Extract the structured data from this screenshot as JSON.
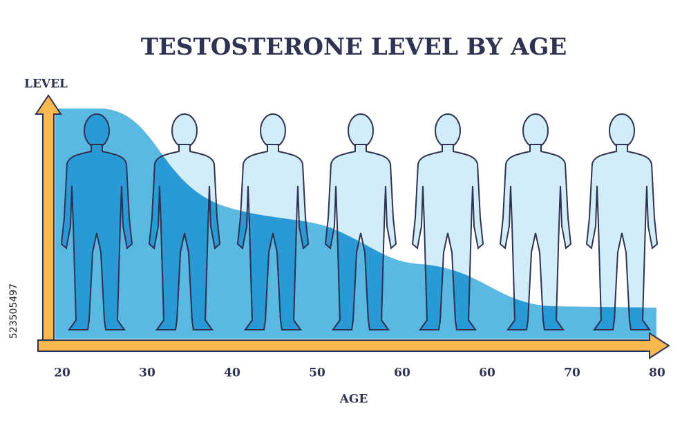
{
  "header": {
    "title": "TESTOSTERONE LEVEL BY AGE"
  },
  "y_axis": {
    "label": "LEVEL"
  },
  "x_axis": {
    "label": "AGE",
    "tick_labels": [
      "20",
      "30",
      "40",
      "50",
      "60",
      "60",
      "70",
      "80"
    ]
  },
  "watermark_id": "523505497"
}
